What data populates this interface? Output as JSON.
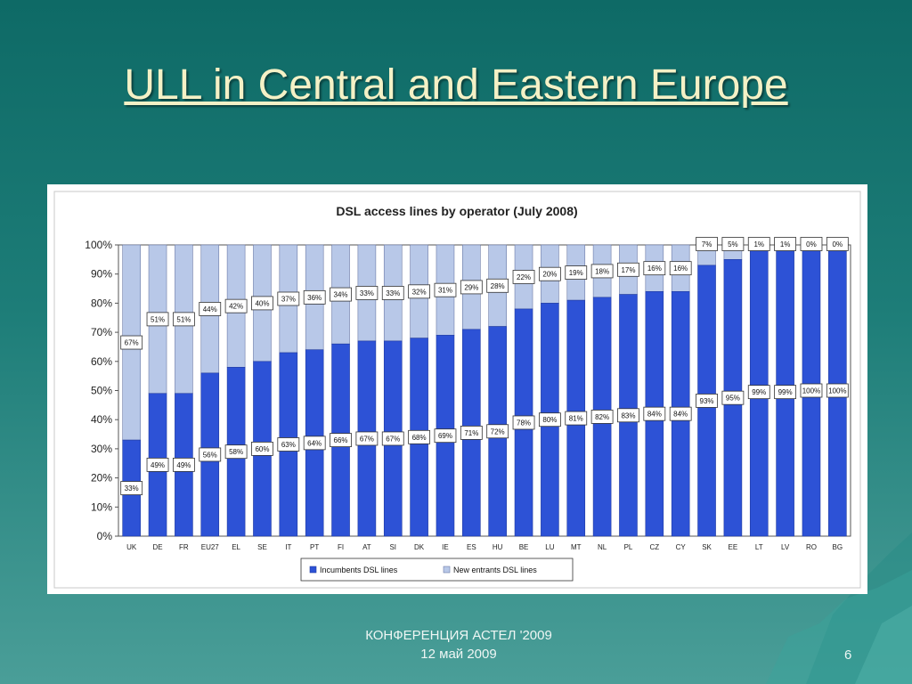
{
  "slide": {
    "title": "ULL in Central and Eastern Europe",
    "footer_line1": "КОНФЕРЕНЦИЯ АСТЕЛ '2009",
    "footer_line2": "12 май 2009",
    "page_number": "6"
  },
  "colors": {
    "incumbent": "#2d52d6",
    "new_entrant": "#b8c8e8",
    "background": "#1d7d78",
    "title": "#f4f1c6"
  },
  "chart_data": {
    "type": "bar",
    "stacked": true,
    "title": "DSL access lines by operator (July 2008)",
    "categories": [
      "UK",
      "DE",
      "FR",
      "EU27",
      "EL",
      "SE",
      "IT",
      "PT",
      "FI",
      "AT",
      "SI",
      "DK",
      "IE",
      "ES",
      "HU",
      "BE",
      "LU",
      "MT",
      "NL",
      "PL",
      "CZ",
      "CY",
      "SK",
      "EE",
      "LT",
      "LV",
      "RO",
      "BG"
    ],
    "series": [
      {
        "name": "Incumbents DSL lines",
        "values": [
          33,
          49,
          49,
          56,
          58,
          60,
          63,
          64,
          66,
          67,
          67,
          68,
          69,
          71,
          72,
          78,
          80,
          81,
          82,
          83,
          84,
          84,
          93,
          95,
          99,
          99,
          100,
          100
        ]
      },
      {
        "name": "New entrants DSL lines",
        "values": [
          67,
          51,
          51,
          44,
          42,
          40,
          37,
          36,
          34,
          33,
          33,
          32,
          31,
          29,
          28,
          22,
          20,
          19,
          18,
          17,
          16,
          16,
          7,
          5,
          1,
          1,
          0,
          0
        ]
      }
    ],
    "ylim": [
      0,
      100
    ],
    "yticks": [
      "0%",
      "10%",
      "20%",
      "30%",
      "40%",
      "50%",
      "60%",
      "70%",
      "80%",
      "90%",
      "100%"
    ],
    "legend_position": "bottom",
    "grid": false
  }
}
